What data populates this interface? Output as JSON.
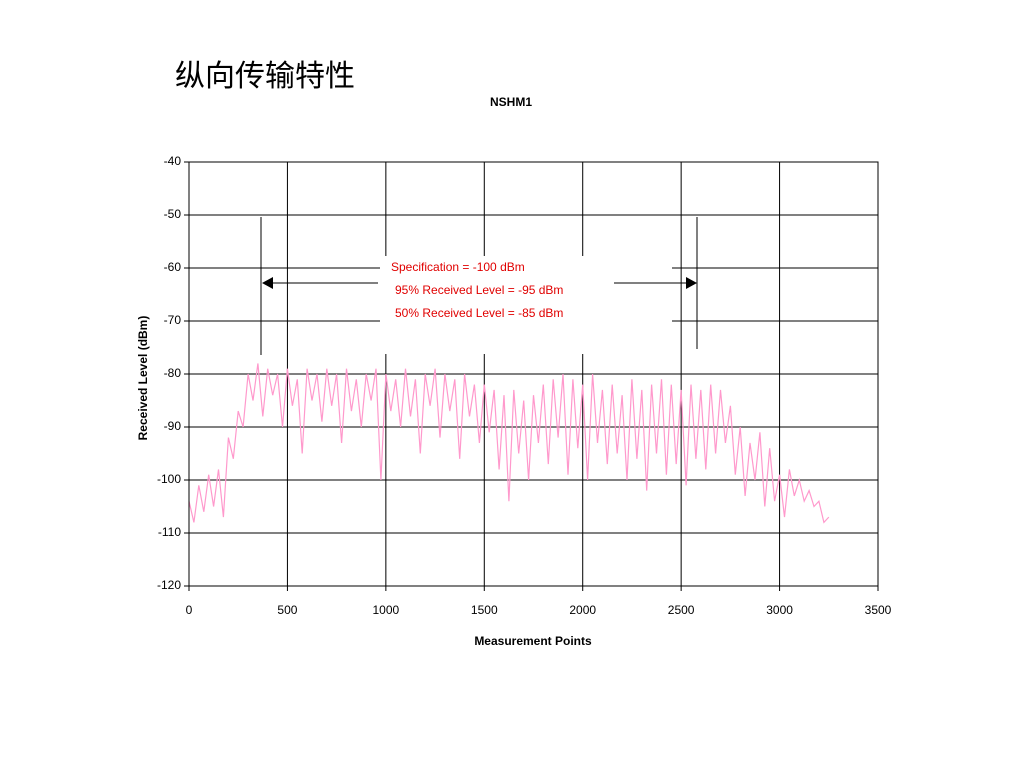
{
  "title": "纵向传输特性",
  "chart_data": {
    "type": "line",
    "title": "NSHM1",
    "x_label": "Measurement Points",
    "y_label": "Received Level (dBm)",
    "annotations": [
      "Specification = -100 dBm",
      "95% Received Level = -95 dBm",
      "50% Received Level = -85 dBm"
    ],
    "x": [
      0,
      25,
      50,
      75,
      100,
      125,
      150,
      175,
      200,
      225,
      250,
      275,
      300,
      325,
      350,
      375,
      400,
      425,
      450,
      475,
      500,
      525,
      550,
      575,
      600,
      625,
      650,
      675,
      700,
      725,
      750,
      775,
      800,
      825,
      850,
      875,
      900,
      925,
      950,
      975,
      1000,
      1025,
      1050,
      1075,
      1100,
      1125,
      1150,
      1175,
      1200,
      1225,
      1250,
      1275,
      1300,
      1325,
      1350,
      1375,
      1400,
      1425,
      1450,
      1475,
      1500,
      1525,
      1550,
      1575,
      1600,
      1625,
      1650,
      1675,
      1700,
      1725,
      1750,
      1775,
      1800,
      1825,
      1850,
      1875,
      1900,
      1925,
      1950,
      1975,
      2000,
      2025,
      2050,
      2075,
      2100,
      2125,
      2150,
      2175,
      2200,
      2225,
      2250,
      2275,
      2300,
      2325,
      2350,
      2375,
      2400,
      2425,
      2450,
      2475,
      2500,
      2525,
      2550,
      2575,
      2600,
      2625,
      2650,
      2675,
      2700,
      2725,
      2750,
      2775,
      2800,
      2825,
      2850,
      2875,
      2900,
      2925,
      2950,
      2975,
      3000,
      3025,
      3050,
      3075,
      3100,
      3125,
      3150,
      3175,
      3200,
      3225,
      3250
    ],
    "values": [
      -104,
      -108,
      -101,
      -106,
      -99,
      -105,
      -98,
      -107,
      -92,
      -96,
      -87,
      -90,
      -80,
      -85,
      -78,
      -88,
      -79,
      -84,
      -80,
      -90,
      -79,
      -86,
      -81,
      -95,
      -79,
      -85,
      -80,
      -89,
      -79,
      -86,
      -80,
      -93,
      -79,
      -87,
      -81,
      -90,
      -80,
      -85,
      -79,
      -100,
      -80,
      -87,
      -81,
      -90,
      -79,
      -88,
      -81,
      -95,
      -80,
      -86,
      -79,
      -92,
      -80,
      -87,
      -81,
      -96,
      -80,
      -88,
      -82,
      -93,
      -82,
      -91,
      -83,
      -98,
      -84,
      -104,
      -83,
      -95,
      -85,
      -100,
      -84,
      -93,
      -82,
      -97,
      -81,
      -92,
      -80,
      -99,
      -81,
      -94,
      -82,
      -100,
      -80,
      -93,
      -83,
      -97,
      -82,
      -95,
      -84,
      -100,
      -81,
      -96,
      -83,
      -102,
      -82,
      -95,
      -81,
      -99,
      -82,
      -97,
      -83,
      -101,
      -82,
      -96,
      -83,
      -98,
      -82,
      -95,
      -83,
      -93,
      -86,
      -99,
      -90,
      -103,
      -93,
      -100,
      -91,
      -105,
      -94,
      -104,
      -99,
      -107,
      -98,
      -103,
      -100,
      -104,
      -102,
      -105,
      -104,
      -108,
      -107
    ],
    "color": "#ff99cc",
    "xlim": [
      0,
      3500
    ],
    "ylim": [
      -120,
      -40
    ],
    "xticks": [
      0,
      500,
      1000,
      1500,
      2000,
      2500,
      3000,
      3500
    ],
    "yticks": [
      -40,
      -50,
      -60,
      -70,
      -80,
      -90,
      -100,
      -110,
      -120
    ],
    "grid": true
  }
}
